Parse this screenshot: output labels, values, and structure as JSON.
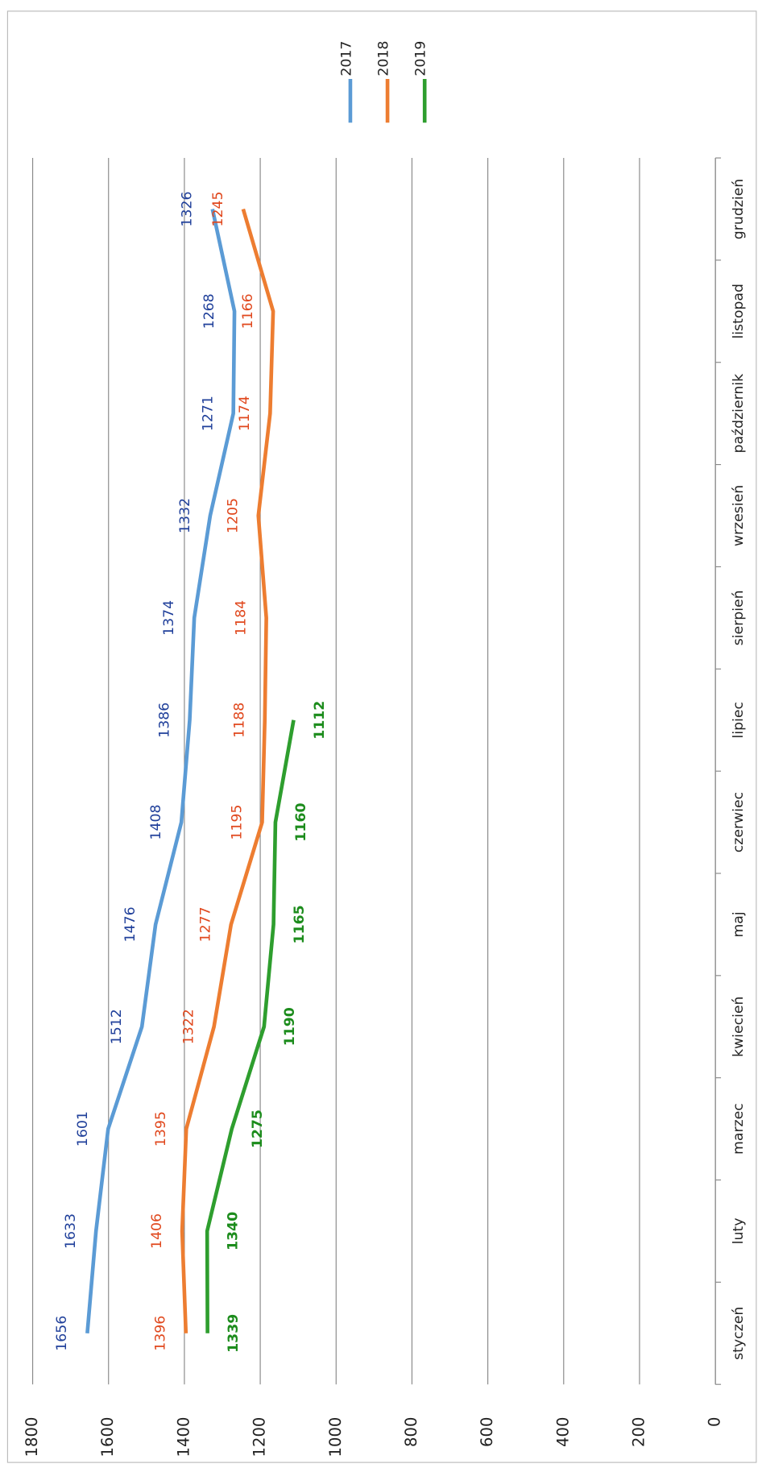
{
  "chart_data": {
    "type": "line",
    "categories": [
      "styczeń",
      "luty",
      "marzec",
      "kwiecień",
      "maj",
      "czerwiec",
      "lipiec",
      "sierpień",
      "wrzesień",
      "październik",
      "listopad",
      "grudzień"
    ],
    "series": [
      {
        "name": "2017",
        "color": "#5b9bd5",
        "label_color": "#1f3f9a",
        "values": [
          1656,
          1633,
          1601,
          1512,
          1476,
          1408,
          1386,
          1374,
          1332,
          1271,
          1268,
          1326
        ]
      },
      {
        "name": "2018",
        "color": "#ed7d31",
        "label_color": "#e0471c",
        "values": [
          1396,
          1406,
          1395,
          1322,
          1277,
          1195,
          1188,
          1184,
          1205,
          1174,
          1166,
          1245
        ]
      },
      {
        "name": "2019",
        "color": "#2e9e2e",
        "label_color": "#1c8c1c",
        "values": [
          1339,
          1340,
          1275,
          1190,
          1165,
          1160,
          1112,
          null,
          null,
          null,
          null,
          null
        ]
      }
    ],
    "ylim": [
      0,
      1800
    ],
    "yticks": [
      0,
      200,
      400,
      600,
      800,
      1000,
      1200,
      1400,
      1600,
      1800
    ],
    "grid": true,
    "legend": "upper right"
  }
}
